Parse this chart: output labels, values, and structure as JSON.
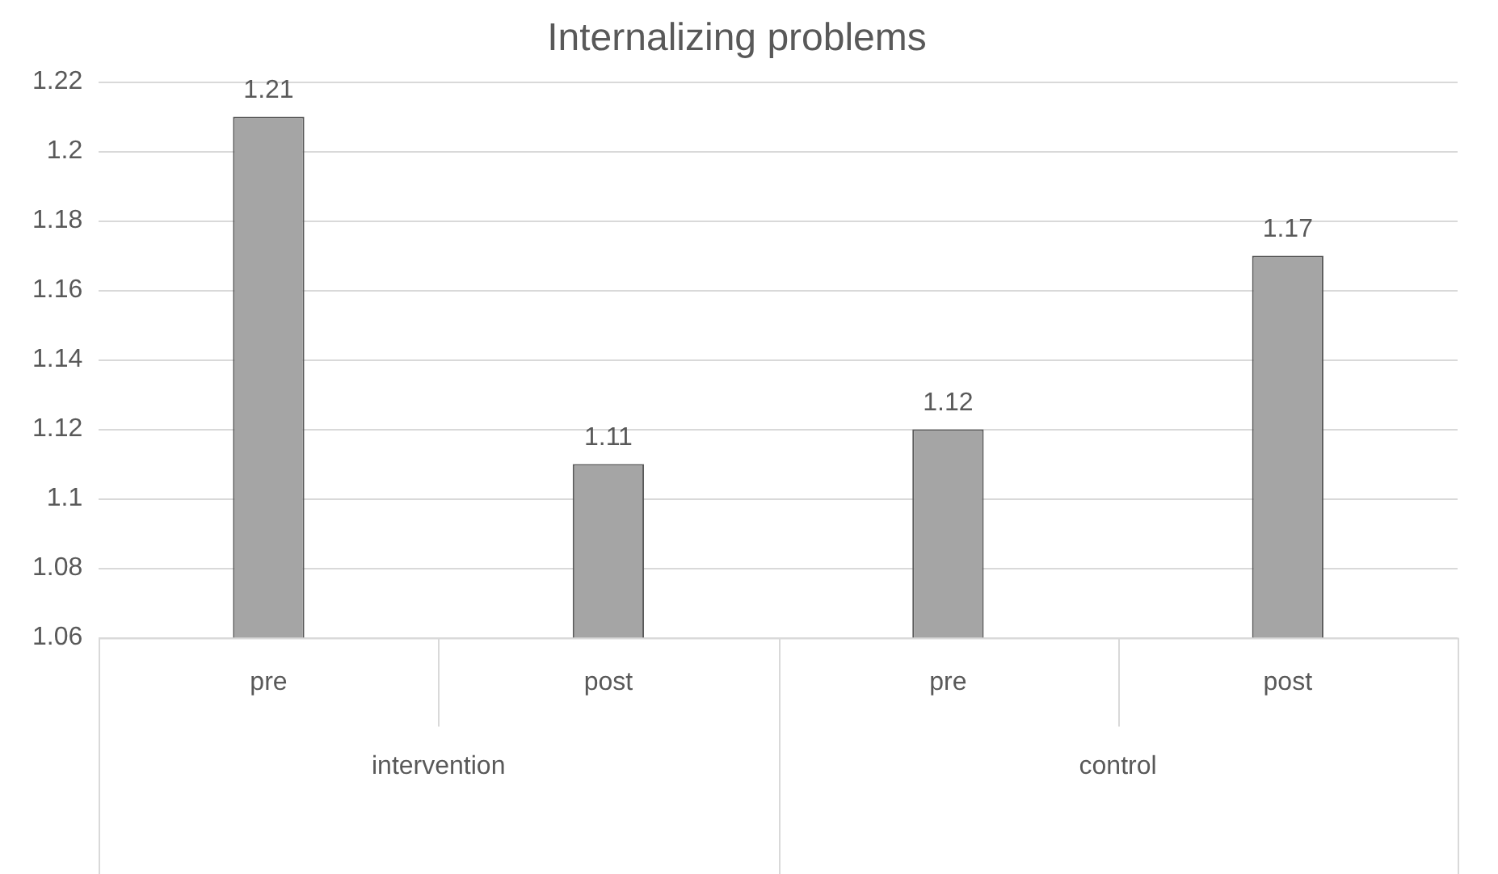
{
  "chart_data": {
    "type": "bar",
    "title": "Internalizing problems",
    "categories": [
      "pre",
      "post",
      "pre",
      "post"
    ],
    "values": [
      1.21,
      1.11,
      1.12,
      1.17
    ],
    "color": "#a5a5a5",
    "ylim": [
      1.06,
      1.22
    ],
    "yticks": [
      1.06,
      1.08,
      1.1,
      1.12,
      1.14,
      1.16,
      1.18,
      1.2,
      1.22
    ],
    "grid": "y",
    "data_labels": true,
    "legend": false,
    "annotations": [
      "intervention",
      "control"
    ]
  }
}
